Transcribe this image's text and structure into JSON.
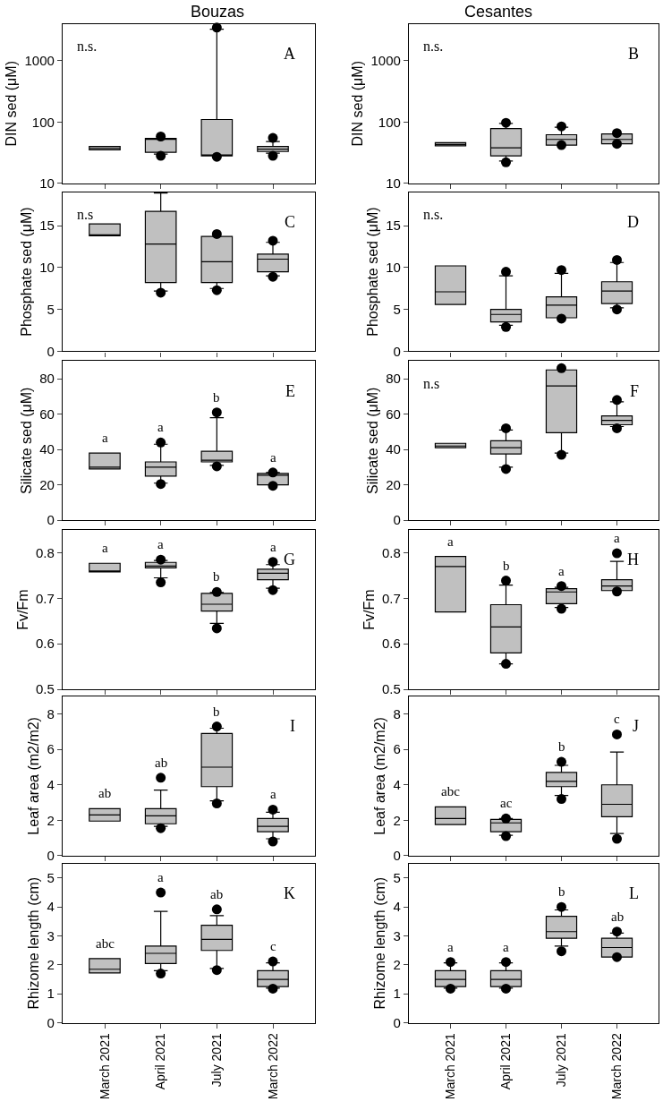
{
  "chart_data": [
    {
      "type": "box",
      "title": "Bouzas",
      "ylabel": "DIN sed (μM)",
      "categories": [
        null,
        null,
        null,
        null
      ],
      "color": "#c0c0c0",
      "marker": "circle",
      "log": true,
      "ylim": [
        10,
        4000
      ],
      "yticks": [
        10,
        100,
        1000
      ],
      "tick_labels": "y",
      "boxes": [
        {
          "low": 35,
          "q1": 35,
          "median": 37,
          "q3": 40,
          "high": 40
        },
        {
          "low": 30,
          "q1": 32,
          "median": 52,
          "q3": 54,
          "high": 54,
          "outliers": [
            28,
            58
          ]
        },
        {
          "low": 28,
          "q1": 28,
          "median": 29,
          "q3": 110,
          "high": 3300,
          "outliers": [
            27,
            3500
          ]
        },
        {
          "low": 31,
          "q1": 33,
          "median": 36,
          "q3": 40,
          "high": 48,
          "outliers": [
            28,
            55
          ]
        }
      ],
      "annotations": [
        "A",
        "n.s."
      ]
    },
    {
      "type": "box",
      "title": "Cesantes",
      "ylabel": "DIN sed (μM)",
      "categories": [
        null,
        null,
        null,
        null
      ],
      "color": "#c0c0c0",
      "marker": "circle",
      "log": true,
      "ylim": [
        10,
        4000
      ],
      "yticks": [
        10,
        100,
        1000
      ],
      "tick_labels": "y",
      "boxes": [
        {
          "low": 41,
          "q1": 41,
          "median": 43,
          "q3": 46,
          "high": 46
        },
        {
          "low": 23,
          "q1": 28,
          "median": 38,
          "q3": 78,
          "high": 95,
          "outliers": [
            22,
            97
          ]
        },
        {
          "low": 42,
          "q1": 42,
          "median": 52,
          "q3": 62,
          "high": 82,
          "outliers": [
            42,
            85
          ]
        },
        {
          "low": 44,
          "q1": 44,
          "median": 52,
          "q3": 64,
          "high": 63,
          "outliers": [
            44,
            66
          ]
        }
      ],
      "annotations": [
        "B",
        "n.s."
      ]
    },
    {
      "type": "box",
      "ylabel": "Phosphate sed (μM)",
      "categories": [
        null,
        null,
        null,
        null
      ],
      "color": "#c0c0c0",
      "marker": "circle",
      "ylim": [
        0,
        19
      ],
      "yticks": [
        0,
        5,
        10,
        15
      ],
      "tick_labels": "y",
      "boxes": [
        {
          "low": 13.8,
          "q1": 13.8,
          "median": 13.9,
          "q3": 15.2,
          "high": 15.2
        },
        {
          "low": 7.2,
          "q1": 8.2,
          "median": 12.8,
          "q3": 16.7,
          "high": 18.9,
          "outliers": [
            7.0
          ]
        },
        {
          "low": 7.5,
          "q1": 8.2,
          "median": 10.7,
          "q3": 13.7,
          "high": 13.7,
          "outliers": [
            7.3,
            14.0
          ]
        },
        {
          "low": 9.0,
          "q1": 9.5,
          "median": 11.0,
          "q3": 11.6,
          "high": 13.0,
          "outliers": [
            8.9,
            13.2
          ]
        }
      ],
      "annotations": [
        "C",
        "n.s"
      ]
    },
    {
      "type": "box",
      "ylabel": "Phosphate sed (μM)",
      "categories": [
        null,
        null,
        null,
        null
      ],
      "color": "#c0c0c0",
      "marker": "circle",
      "ylim": [
        0,
        19
      ],
      "yticks": [
        0,
        5,
        10,
        15
      ],
      "tick_labels": "y",
      "boxes": [
        {
          "low": 5.6,
          "q1": 5.6,
          "median": 7.1,
          "q3": 10.2,
          "high": 10.2
        },
        {
          "low": 3.1,
          "q1": 3.5,
          "median": 4.4,
          "q3": 5.0,
          "high": 9.0,
          "outliers": [
            2.9,
            9.5
          ]
        },
        {
          "low": 4.0,
          "q1": 4.0,
          "median": 5.5,
          "q3": 6.5,
          "high": 9.3,
          "outliers": [
            3.9,
            9.7
          ]
        },
        {
          "low": 5.2,
          "q1": 5.7,
          "median": 7.2,
          "q3": 8.3,
          "high": 10.6,
          "outliers": [
            5.0,
            10.9
          ]
        }
      ],
      "annotations": [
        "D",
        "n.s."
      ]
    },
    {
      "type": "box",
      "ylabel": "Silicate sed (μM)",
      "categories": [
        null,
        null,
        null,
        null
      ],
      "color": "#c0c0c0",
      "marker": "circle",
      "ylim": [
        0,
        90
      ],
      "yticks": [
        0,
        20,
        40,
        60,
        80
      ],
      "tick_labels": "y",
      "boxes": [
        {
          "low": 29,
          "q1": 29,
          "median": 30,
          "q3": 38,
          "high": 38
        },
        {
          "low": 21,
          "q1": 25,
          "median": 30,
          "q3": 33,
          "high": 43,
          "outliers": [
            20.5,
            44
          ]
        },
        {
          "low": 31,
          "q1": 33,
          "median": 34,
          "q3": 39,
          "high": 58,
          "outliers": [
            30.5,
            61
          ]
        },
        {
          "low": 20,
          "q1": 20,
          "median": 25.5,
          "q3": 26.5,
          "high": 27,
          "outliers": [
            19.5,
            27
          ]
        }
      ],
      "annotations": [
        "E",
        "a",
        "a",
        "b",
        "a"
      ]
    },
    {
      "type": "box",
      "ylabel": "Silicate sed (μM)",
      "categories": [
        null,
        null,
        null,
        null
      ],
      "color": "#c0c0c0",
      "marker": "circle",
      "ylim": [
        0,
        90
      ],
      "yticks": [
        0,
        20,
        40,
        60,
        80
      ],
      "tick_labels": "y",
      "boxes": [
        {
          "low": 41,
          "q1": 41,
          "median": 42,
          "q3": 43.5,
          "high": 43.5
        },
        {
          "low": 30,
          "q1": 37.5,
          "median": 41,
          "q3": 45,
          "high": 51,
          "outliers": [
            29,
            52
          ]
        },
        {
          "low": 38,
          "q1": 49.5,
          "median": 76,
          "q3": 85,
          "high": 85,
          "outliers": [
            37,
            86
          ]
        },
        {
          "low": 53,
          "q1": 54,
          "median": 56.5,
          "q3": 59,
          "high": 67,
          "outliers": [
            52,
            68
          ]
        }
      ],
      "annotations": [
        "F",
        "n.s"
      ]
    },
    {
      "type": "box",
      "ylabel": "Fv/Fm",
      "categories": [
        null,
        null,
        null,
        null
      ],
      "color": "#c0c0c0",
      "marker": "circle",
      "ylim": [
        0.5,
        0.85
      ],
      "yticks": [
        0.5,
        0.6,
        0.7,
        0.8
      ],
      "tick_labels": "y",
      "boxes": [
        {
          "low": 0.758,
          "q1": 0.758,
          "median": 0.76,
          "q3": 0.777,
          "high": 0.777
        },
        {
          "low": 0.745,
          "q1": 0.767,
          "median": 0.771,
          "q3": 0.779,
          "high": 0.783,
          "outliers": [
            0.735,
            0.785
          ]
        },
        {
          "low": 0.645,
          "q1": 0.672,
          "median": 0.687,
          "q3": 0.711,
          "high": 0.713,
          "outliers": [
            0.634,
            0.714
          ]
        },
        {
          "low": 0.722,
          "q1": 0.741,
          "median": 0.755,
          "q3": 0.764,
          "high": 0.774,
          "outliers": [
            0.718,
            0.78
          ]
        }
      ],
      "annotations": [
        "G",
        "a",
        "a",
        "b",
        "a"
      ]
    },
    {
      "type": "box",
      "ylabel": "Fv/Fm",
      "categories": [
        null,
        null,
        null,
        null
      ],
      "color": "#c0c0c0",
      "marker": "circle",
      "ylim": [
        0.5,
        0.85
      ],
      "yticks": [
        0.5,
        0.6,
        0.7,
        0.8
      ],
      "tick_labels": "y",
      "boxes": [
        {
          "low": 0.67,
          "q1": 0.67,
          "median": 0.77,
          "q3": 0.792,
          "high": 0.792
        },
        {
          "low": 0.556,
          "q1": 0.58,
          "median": 0.637,
          "q3": 0.686,
          "high": 0.729,
          "outliers": [
            0.556,
            0.739
          ]
        },
        {
          "low": 0.68,
          "q1": 0.688,
          "median": 0.714,
          "q3": 0.721,
          "high": 0.724,
          "outliers": [
            0.677,
            0.727
          ]
        },
        {
          "low": 0.717,
          "q1": 0.717,
          "median": 0.727,
          "q3": 0.741,
          "high": 0.781,
          "outliers": [
            0.715,
            0.799
          ]
        }
      ],
      "annotations": [
        "H",
        "a",
        "b",
        "a",
        "a"
      ]
    },
    {
      "type": "box",
      "ylabel": "Leaf area (m2/m2)",
      "categories": [
        null,
        null,
        null,
        null
      ],
      "color": "#c0c0c0",
      "marker": "circle",
      "ylim": [
        0,
        9
      ],
      "yticks": [
        0,
        2,
        4,
        6,
        8
      ],
      "tick_labels": "y",
      "boxes": [
        {
          "low": 1.95,
          "q1": 1.95,
          "median": 2.3,
          "q3": 2.65,
          "high": 2.65
        },
        {
          "low": 1.65,
          "q1": 1.8,
          "median": 2.25,
          "q3": 2.65,
          "high": 3.7,
          "outliers": [
            1.55,
            4.4
          ]
        },
        {
          "low": 3.1,
          "q1": 3.9,
          "median": 5.0,
          "q3": 6.9,
          "high": 7.2,
          "outliers": [
            2.95,
            7.3
          ]
        },
        {
          "low": 0.95,
          "q1": 1.35,
          "median": 1.65,
          "q3": 2.1,
          "high": 2.45,
          "outliers": [
            0.8,
            2.6
          ]
        }
      ],
      "annotations": [
        "I",
        "ab",
        "ab",
        "b",
        "a"
      ]
    },
    {
      "type": "box",
      "ylabel": "Leaf area (m2/m2)",
      "categories": [
        null,
        null,
        null,
        null
      ],
      "color": "#c0c0c0",
      "marker": "circle",
      "ylim": [
        0,
        9
      ],
      "yticks": [
        0,
        2,
        4,
        6,
        8
      ],
      "tick_labels": "y",
      "boxes": [
        {
          "low": 1.75,
          "q1": 1.75,
          "median": 2.1,
          "q3": 2.75,
          "high": 2.75
        },
        {
          "low": 1.15,
          "q1": 1.35,
          "median": 1.85,
          "q3": 2.05,
          "high": 2.1,
          "outliers": [
            1.1,
            2.1
          ]
        },
        {
          "low": 3.4,
          "q1": 3.9,
          "median": 4.2,
          "q3": 4.7,
          "high": 5.1,
          "outliers": [
            3.2,
            5.3
          ]
        },
        {
          "low": 1.25,
          "q1": 2.2,
          "median": 2.9,
          "q3": 4.0,
          "high": 5.85,
          "outliers": [
            0.95,
            6.85
          ]
        }
      ],
      "annotations": [
        "J",
        "abc",
        "ac",
        "b",
        "c"
      ]
    },
    {
      "type": "box",
      "ylabel": "Rhizome length (cm)",
      "categories": [
        "March 2021",
        "April 2021",
        "July 2021",
        "March 2022"
      ],
      "color": "#c0c0c0",
      "marker": "circle",
      "ylim": [
        0,
        5.5
      ],
      "yticks": [
        0,
        1,
        2,
        3,
        4,
        5
      ],
      "boxes": [
        {
          "low": 1.72,
          "q1": 1.72,
          "median": 1.85,
          "q3": 2.22,
          "high": 2.22
        },
        {
          "low": 1.8,
          "q1": 2.05,
          "median": 2.4,
          "q3": 2.65,
          "high": 3.85,
          "outliers": [
            1.7,
            4.5
          ]
        },
        {
          "low": 1.88,
          "q1": 2.5,
          "median": 2.88,
          "q3": 3.37,
          "high": 3.7,
          "outliers": [
            1.82,
            3.92
          ]
        },
        {
          "low": 1.2,
          "q1": 1.25,
          "median": 1.5,
          "q3": 1.8,
          "high": 2.07,
          "outliers": [
            1.18,
            2.12
          ]
        }
      ],
      "annotations": [
        "K",
        "abc",
        "a",
        "ab",
        "c"
      ]
    },
    {
      "type": "box",
      "ylabel": "Rhizome length (cm)",
      "categories": [
        "March 2021",
        "April 2021",
        "July 2021",
        "March 2022"
      ],
      "color": "#c0c0c0",
      "marker": "circle",
      "ylim": [
        0,
        5.5
      ],
      "yticks": [
        0,
        1,
        2,
        3,
        4,
        5
      ],
      "boxes": [
        {
          "low": 1.2,
          "q1": 1.25,
          "median": 1.5,
          "q3": 1.8,
          "high": 2.07,
          "outliers": [
            1.18,
            2.1
          ]
        },
        {
          "low": 1.2,
          "q1": 1.25,
          "median": 1.5,
          "q3": 1.8,
          "high": 2.07,
          "outliers": [
            1.18,
            2.1
          ]
        },
        {
          "low": 2.65,
          "q1": 2.92,
          "median": 3.15,
          "q3": 3.68,
          "high": 3.9,
          "outliers": [
            2.47,
            4.0
          ]
        },
        {
          "low": 2.27,
          "q1": 2.27,
          "median": 2.6,
          "q3": 2.92,
          "high": 3.1,
          "outliers": [
            2.27,
            3.15
          ]
        }
      ],
      "annotations": [
        "L",
        "a",
        "a",
        "b",
        "ab"
      ]
    }
  ]
}
